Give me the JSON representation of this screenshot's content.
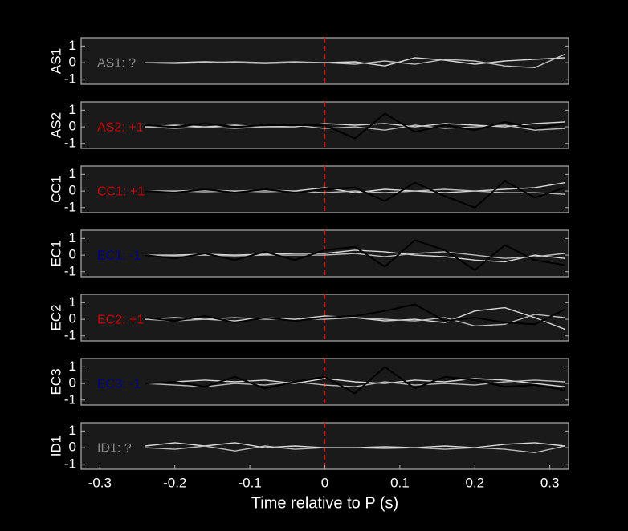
{
  "chart_data": [
    {
      "type": "line",
      "ylabel": "AS1",
      "annotation": "AS1: ?",
      "annotation_color": "#8a8a8a",
      "xlim": [
        -0.325,
        0.325
      ],
      "ylim": [
        -1.3,
        1.5
      ],
      "yticks": [
        -1,
        0,
        1
      ],
      "vline": 0,
      "vline_color": "#e00000",
      "x": [
        -0.32,
        -0.28,
        -0.24,
        -0.2,
        -0.16,
        -0.12,
        -0.08,
        -0.04,
        0,
        0.04,
        0.08,
        0.12,
        0.16,
        0.2,
        0.24,
        0.28,
        0.32
      ],
      "series": [
        {
          "color": "#d8d8d8",
          "values": [
            null,
            null,
            0,
            0,
            0.05,
            0,
            -0.05,
            0,
            0,
            0.05,
            -0.2,
            0.3,
            0.15,
            -0.1,
            0.1,
            0.2,
            0.3
          ]
        },
        {
          "color": "#bcbcbc",
          "values": [
            null,
            null,
            0,
            -0.05,
            0,
            0.05,
            0,
            0.05,
            0,
            -0.1,
            0.1,
            -0.1,
            0.2,
            0.1,
            -0.2,
            -0.3,
            0.5
          ]
        }
      ]
    },
    {
      "type": "line",
      "ylabel": "AS2",
      "annotation": "AS2: +1",
      "annotation_color": "#cc0000",
      "xlim": [
        -0.325,
        0.325
      ],
      "ylim": [
        -1.3,
        1.5
      ],
      "yticks": [
        -1,
        0,
        1
      ],
      "vline": 0,
      "vline_color": "#e00000",
      "x": [
        -0.32,
        -0.28,
        -0.24,
        -0.2,
        -0.16,
        -0.12,
        -0.08,
        -0.04,
        0,
        0.04,
        0.08,
        0.12,
        0.16,
        0.2,
        0.24,
        0.28,
        0.32
      ],
      "series": [
        {
          "color": "#d8d8d8",
          "values": [
            null,
            null,
            0,
            0.1,
            0,
            0.1,
            0,
            0,
            0.2,
            0.1,
            0.2,
            0,
            0.2,
            0.1,
            0,
            0.2,
            0.3
          ]
        },
        {
          "color": "#bcbcbc",
          "values": [
            null,
            null,
            0,
            -0.1,
            0,
            -0.1,
            0,
            0.1,
            -0.1,
            0,
            -0.2,
            0.1,
            -0.1,
            0,
            0.1,
            -0.2,
            -0.1
          ]
        },
        {
          "color": "#000000",
          "values": [
            null,
            null,
            0.1,
            0,
            0.2,
            0,
            0.1,
            0.1,
            0.1,
            -0.7,
            0.8,
            -0.3,
            0.1,
            -0.2,
            0.3,
            -0.1,
            0.2
          ]
        }
      ]
    },
    {
      "type": "line",
      "ylabel": "CC1",
      "annotation": "CC1: +1",
      "annotation_color": "#cc0000",
      "xlim": [
        -0.325,
        0.325
      ],
      "ylim": [
        -1.3,
        1.5
      ],
      "yticks": [
        -1,
        0,
        1
      ],
      "vline": 0,
      "vline_color": "#e00000",
      "x": [
        -0.32,
        -0.28,
        -0.24,
        -0.2,
        -0.16,
        -0.12,
        -0.08,
        -0.04,
        0,
        0.04,
        0.08,
        0.12,
        0.16,
        0.2,
        0.24,
        0.28,
        0.32
      ],
      "series": [
        {
          "color": "#d8d8d8",
          "values": [
            null,
            null,
            0,
            0,
            0.05,
            0,
            0.05,
            0,
            0.2,
            -0.1,
            0.1,
            0,
            -0.1,
            0,
            0.1,
            0.2,
            0.5
          ]
        },
        {
          "color": "#bcbcbc",
          "values": [
            null,
            null,
            0,
            0,
            -0.05,
            0,
            -0.05,
            0,
            -0.1,
            0,
            -0.1,
            0,
            0.1,
            0,
            -0.1,
            -0.1,
            -0.2
          ]
        },
        {
          "color": "#000000",
          "values": [
            null,
            null,
            0,
            -0.1,
            0.1,
            -0.1,
            0.1,
            -0.1,
            0.1,
            0.2,
            -0.6,
            0.5,
            -0.3,
            -1.0,
            0.6,
            -0.4,
            0.2
          ]
        }
      ]
    },
    {
      "type": "line",
      "ylabel": "EC1",
      "annotation": "EC1: -1",
      "annotation_color": "#00008b",
      "xlim": [
        -0.325,
        0.325
      ],
      "ylim": [
        -1.3,
        1.5
      ],
      "yticks": [
        -1,
        0,
        1
      ],
      "vline": 0,
      "vline_color": "#e00000",
      "x": [
        -0.32,
        -0.28,
        -0.24,
        -0.2,
        -0.16,
        -0.12,
        -0.08,
        -0.04,
        0,
        0.04,
        0.08,
        0.12,
        0.16,
        0.2,
        0.24,
        0.28,
        0.32
      ],
      "series": [
        {
          "color": "#d8d8d8",
          "values": [
            null,
            null,
            0,
            0,
            0.05,
            0,
            0.05,
            0.1,
            0.1,
            0.3,
            0.2,
            0,
            -0.1,
            -0.3,
            -0.4,
            0,
            -0.2
          ]
        },
        {
          "color": "#bcbcbc",
          "values": [
            null,
            null,
            0,
            -0.05,
            0,
            -0.05,
            0,
            0,
            0,
            0.1,
            -0.1,
            0.1,
            0.2,
            0,
            -0.2,
            -0.1,
            0.1
          ]
        },
        {
          "color": "#000000",
          "values": [
            null,
            null,
            0,
            -0.2,
            0.1,
            -0.3,
            0.2,
            -0.3,
            0.3,
            0.5,
            -0.7,
            0.9,
            0.3,
            -0.9,
            0.6,
            -0.3,
            -0.6
          ]
        }
      ]
    },
    {
      "type": "line",
      "ylabel": "EC2",
      "annotation": "EC2: +1",
      "annotation_color": "#cc0000",
      "xlim": [
        -0.325,
        0.325
      ],
      "ylim": [
        -1.3,
        1.5
      ],
      "yticks": [
        -1,
        0,
        1
      ],
      "vline": 0,
      "vline_color": "#e00000",
      "x": [
        -0.32,
        -0.28,
        -0.24,
        -0.2,
        -0.16,
        -0.12,
        -0.08,
        -0.04,
        0,
        0.04,
        0.08,
        0.12,
        0.16,
        0.2,
        0.24,
        0.28,
        0.32
      ],
      "series": [
        {
          "color": "#d8d8d8",
          "values": [
            null,
            null,
            0,
            0.1,
            0,
            -0.1,
            0.1,
            0,
            0.2,
            0.1,
            -0.1,
            0,
            -0.2,
            0.5,
            0.7,
            0.1,
            -0.6
          ]
        },
        {
          "color": "#bcbcbc",
          "values": [
            null,
            null,
            0,
            -0.1,
            0,
            0.1,
            0,
            0,
            0,
            0.1,
            0,
            -0.1,
            0.1,
            -0.4,
            -0.3,
            0.3,
            0.1
          ]
        },
        {
          "color": "#000000",
          "values": [
            null,
            null,
            0.1,
            -0.1,
            0.2,
            -0.2,
            0.1,
            -0.1,
            0.1,
            0.2,
            0.5,
            0.9,
            -0.1,
            0.1,
            -0.2,
            -0.3,
            0.6
          ]
        }
      ]
    },
    {
      "type": "line",
      "ylabel": "EC3",
      "annotation": "EC3: -1",
      "annotation_color": "#00008b",
      "xlim": [
        -0.325,
        0.325
      ],
      "ylim": [
        -1.3,
        1.5
      ],
      "yticks": [
        -1,
        0,
        1
      ],
      "vline": 0,
      "vline_color": "#e00000",
      "x": [
        -0.32,
        -0.28,
        -0.24,
        -0.2,
        -0.16,
        -0.12,
        -0.08,
        -0.04,
        0,
        0.04,
        0.08,
        0.12,
        0.16,
        0.2,
        0.24,
        0.28,
        0.32
      ],
      "series": [
        {
          "color": "#d8d8d8",
          "values": [
            null,
            null,
            0,
            0.1,
            0.2,
            0.1,
            0.2,
            0,
            0.3,
            0.1,
            0,
            0.2,
            0.1,
            0.3,
            0.2,
            0,
            -0.2
          ]
        },
        {
          "color": "#bcbcbc",
          "values": [
            null,
            null,
            0,
            -0.1,
            -0.2,
            0,
            -0.1,
            0.1,
            -0.1,
            -0.2,
            0.1,
            -0.1,
            0,
            -0.1,
            0.1,
            0.2,
            0.1
          ]
        },
        {
          "color": "#000000",
          "values": [
            null,
            null,
            0,
            0.1,
            -0.2,
            0.4,
            -0.3,
            0.1,
            0.4,
            -0.6,
            1.0,
            -0.3,
            0.4,
            0.2,
            -0.2,
            -0.1,
            -0.4
          ]
        }
      ]
    },
    {
      "type": "line",
      "ylabel": "ID1",
      "annotation": "ID1: ?",
      "annotation_color": "#8a8a8a",
      "xlim": [
        -0.325,
        0.325
      ],
      "ylim": [
        -1.3,
        1.5
      ],
      "yticks": [
        -1,
        0,
        1
      ],
      "vline": 0,
      "vline_color": "#e00000",
      "x": [
        -0.32,
        -0.28,
        -0.24,
        -0.2,
        -0.16,
        -0.12,
        -0.08,
        -0.04,
        0,
        0.04,
        0.08,
        0.12,
        0.16,
        0.2,
        0.24,
        0.28,
        0.32
      ],
      "series": [
        {
          "color": "#d8d8d8",
          "values": [
            null,
            null,
            0.1,
            0.3,
            0.1,
            0.3,
            0,
            0.1,
            0,
            0,
            0.05,
            0,
            0.1,
            0,
            0.2,
            0.3,
            0.1
          ]
        },
        {
          "color": "#bcbcbc",
          "values": [
            null,
            null,
            0,
            -0.1,
            0.1,
            -0.2,
            0.1,
            -0.1,
            0,
            0,
            -0.05,
            0,
            -0.1,
            0,
            -0.1,
            -0.3,
            0.1
          ]
        }
      ],
      "xticks": [
        -0.3,
        -0.2,
        -0.1,
        0,
        0.1,
        0.2,
        0.3
      ],
      "xlabel": "Time relative to P (s)"
    }
  ]
}
